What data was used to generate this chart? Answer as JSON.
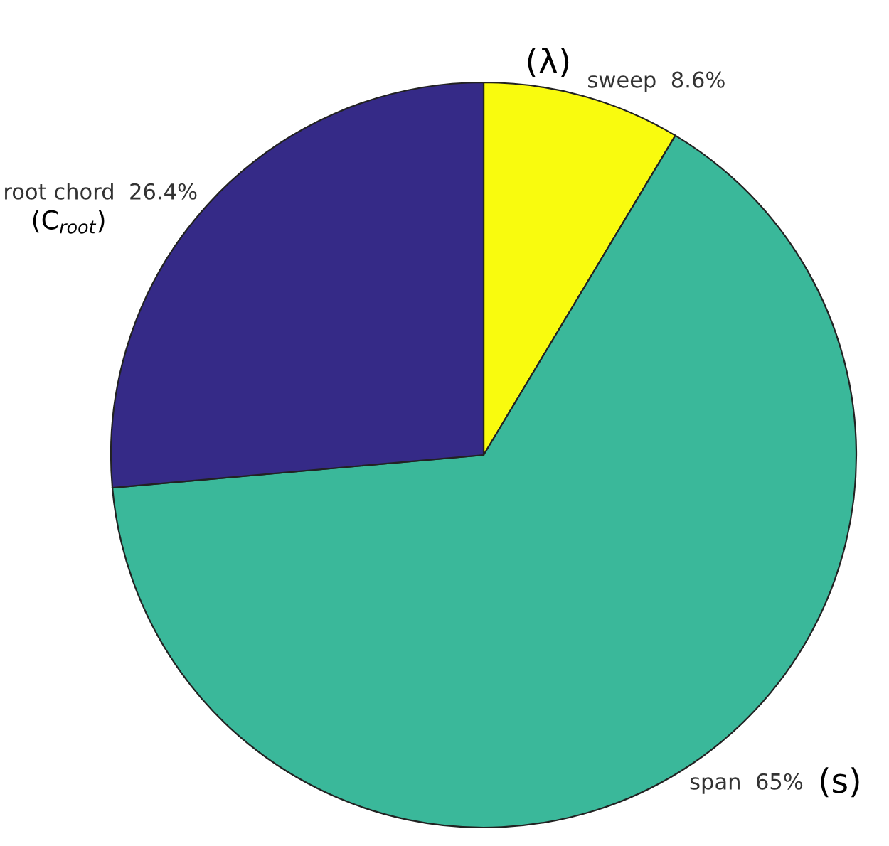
{
  "chart_data": {
    "type": "pie",
    "categories": [
      "sweep",
      "span",
      "root chord"
    ],
    "values": [
      8.6,
      65,
      26.4
    ],
    "value_labels": [
      "8.6%",
      "65%",
      "26.4%"
    ],
    "colors": [
      "#f9fb0e",
      "#3ab89a",
      "#352a87"
    ],
    "annotations": [
      "(λ)",
      "(s)",
      "(C$_{root}$)"
    ]
  }
}
